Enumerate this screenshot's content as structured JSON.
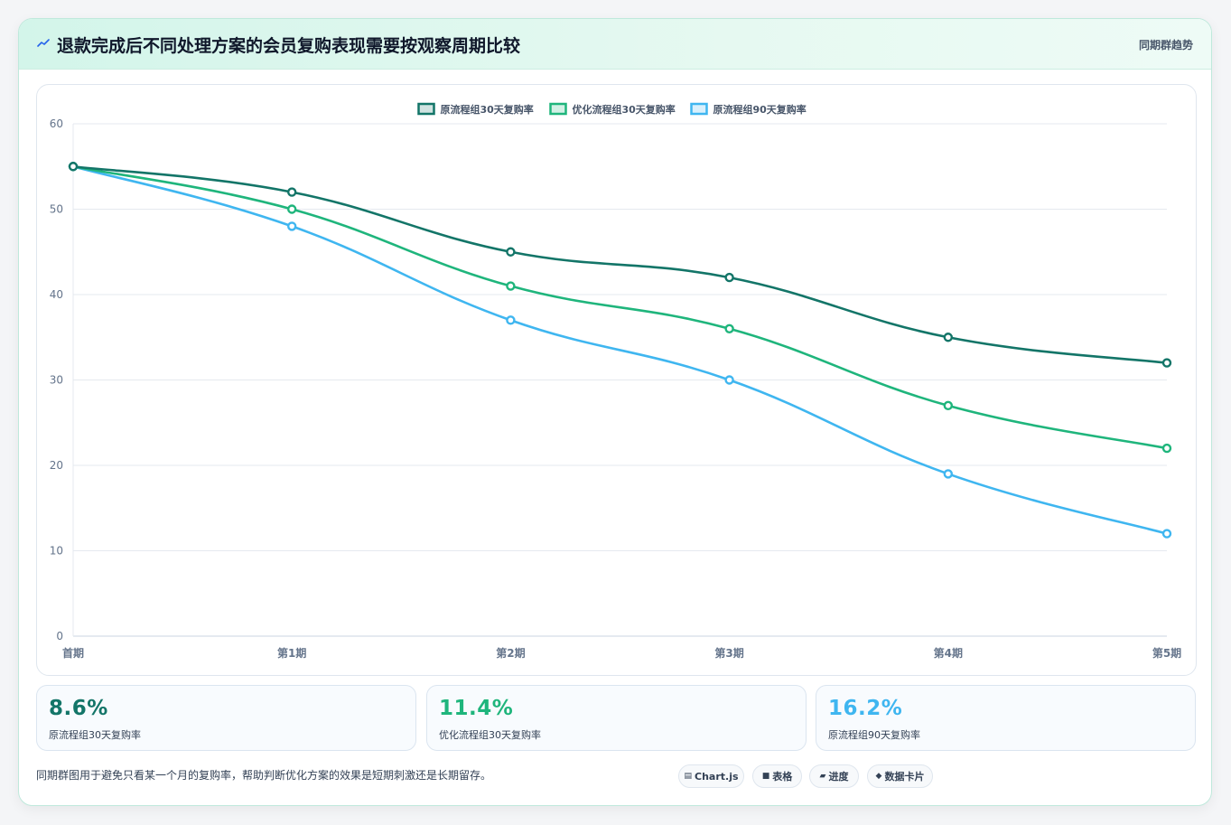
{
  "header": {
    "title": "退款完成后不同处理方案的会员复购表现需要按观察周期比较",
    "tag": "同期群趋势"
  },
  "colors": {
    "series1": "#137568",
    "series2": "#1fb57c",
    "series3": "#3fb6f0"
  },
  "chart_data": {
    "type": "line",
    "categories": [
      "首期",
      "第1期",
      "第2期",
      "第3期",
      "第4期",
      "第5期"
    ],
    "series": [
      {
        "name": "原流程组30天复购率",
        "values": [
          55,
          52,
          45,
          42,
          35,
          32
        ]
      },
      {
        "name": "优化流程组30天复购率",
        "values": [
          55,
          50,
          41,
          36,
          27,
          22
        ]
      },
      {
        "name": "原流程组90天复购率",
        "values": [
          55,
          48,
          37,
          30,
          19,
          12
        ]
      }
    ],
    "ylim": [
      0,
      60
    ],
    "yticks": [
      0,
      10,
      20,
      30,
      40,
      50,
      60
    ],
    "grid": true,
    "legend": "top-center"
  },
  "stats": [
    {
      "value": "8.6%",
      "label": "原流程组30天复购率"
    },
    {
      "value": "11.4%",
      "label": "优化流程组30天复购率"
    },
    {
      "value": "16.2%",
      "label": "原流程组90天复购率"
    }
  ],
  "note": "同期群图用于避免只看某一个月的复购率，帮助判断优化方案的效果是短期刺激还是长期留存。",
  "pills": [
    {
      "icon": "chart-icon",
      "label": "Chart.js"
    },
    {
      "icon": "table-icon",
      "label": "表格"
    },
    {
      "icon": "progress-icon",
      "label": "进度"
    },
    {
      "icon": "card-icon",
      "label": "数据卡片"
    }
  ]
}
